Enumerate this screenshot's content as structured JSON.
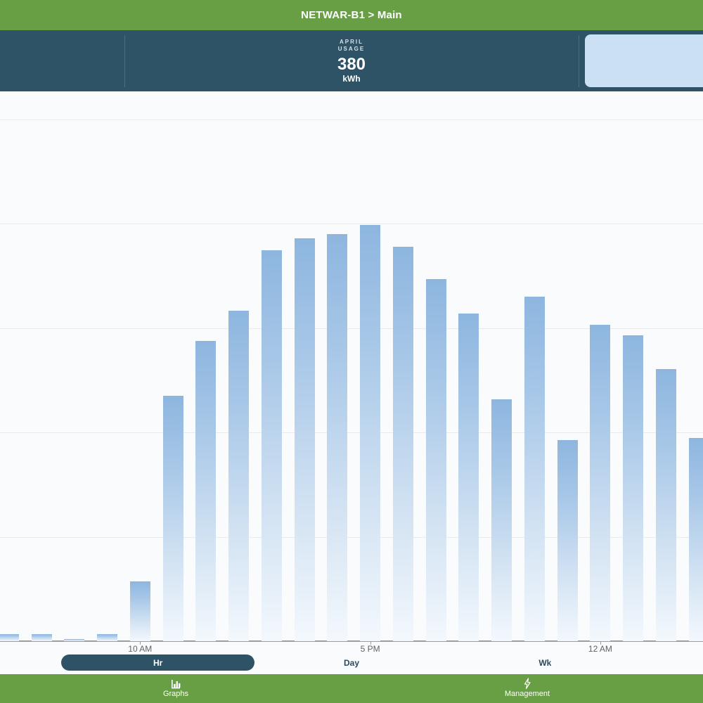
{
  "title_bar": {
    "title": "NETWAR-B1 > Main"
  },
  "stats_bar": {
    "metric_label_line1": "APRIL",
    "metric_label_line2": "USAGE",
    "metric_value": "380",
    "metric_unit": "kWh"
  },
  "chart_data": {
    "type": "bar",
    "title": "",
    "xlabel": "",
    "ylabel": "",
    "x_unit": "hour of day",
    "categories": [
      "6 AM",
      "7 AM",
      "8 AM",
      "9 AM",
      "10 AM",
      "11 AM",
      "12 PM",
      "1 PM",
      "2 PM",
      "3 PM",
      "4 PM",
      "5 PM",
      "6 PM",
      "7 PM",
      "8 PM",
      "9 PM",
      "10 PM",
      "11 PM",
      "12 AM",
      "1 AM",
      "2 AM",
      "3 AM"
    ],
    "values": [
      0.07,
      0.07,
      0.02,
      0.07,
      0.57,
      2.35,
      2.88,
      3.17,
      3.75,
      3.86,
      3.9,
      3.99,
      3.78,
      3.47,
      3.14,
      2.32,
      3.3,
      1.93,
      3.03,
      2.93,
      2.61,
      1.95
    ],
    "x_tick_labels": [
      "10 AM",
      "5 PM",
      "12 AM"
    ],
    "x_tick_indices": [
      4,
      11,
      18
    ],
    "ylim": [
      0,
      5.27
    ],
    "y_gridlines_unlabeled": [
      1,
      2,
      3,
      4,
      5
    ],
    "grid": "horizontal",
    "legend": "none",
    "bar_color_top": "#8db6df",
    "bar_color_bottom": "#f3f8fd"
  },
  "range_selector": {
    "options": [
      {
        "label": "Hr",
        "selected": true
      },
      {
        "label": "Day",
        "selected": false
      },
      {
        "label": "Wk",
        "selected": false
      }
    ]
  },
  "footer": {
    "tabs": [
      {
        "label": "Graphs",
        "icon": "bar-chart-icon"
      },
      {
        "label": "Management",
        "icon": "lightning-icon"
      }
    ]
  },
  "colors": {
    "green": "#699f44",
    "teal": "#2e5266",
    "stat_card_blue": "#cbe0f3",
    "gridline": "#e8eaec",
    "axis": "#9e9e9e",
    "tick_text": "#5f6368"
  }
}
